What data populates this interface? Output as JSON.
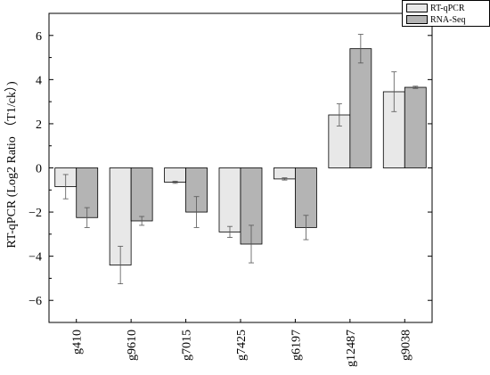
{
  "chart_data": {
    "type": "bar",
    "categories": [
      "g410",
      "g9610",
      "g7015",
      "g7425",
      "g6197",
      "g12487",
      "g9038"
    ],
    "series": [
      {
        "name": "RT-qPCR",
        "color": "#e8e8e8",
        "values": [
          -0.85,
          -4.4,
          -0.65,
          -2.9,
          -0.5,
          2.4,
          3.45
        ],
        "errors": [
          0.55,
          0.85,
          0.05,
          0.25,
          0.05,
          0.5,
          0.9
        ]
      },
      {
        "name": "RNA-Seq",
        "color": "#b4b4b4",
        "values": [
          -2.25,
          -2.4,
          -2.0,
          -3.45,
          -2.7,
          5.4,
          3.65
        ],
        "errors": [
          0.45,
          0.2,
          0.7,
          0.85,
          0.55,
          0.65,
          0.05
        ]
      }
    ],
    "ylabel": "RT-qPCR (Log2 Ratio （T1/ck）)",
    "xlabel": "",
    "ylim": [
      -7,
      7
    ],
    "yticks": [
      -6,
      -4,
      -2,
      0,
      2,
      4,
      6
    ],
    "grid": false,
    "legend_position": "top-right"
  }
}
